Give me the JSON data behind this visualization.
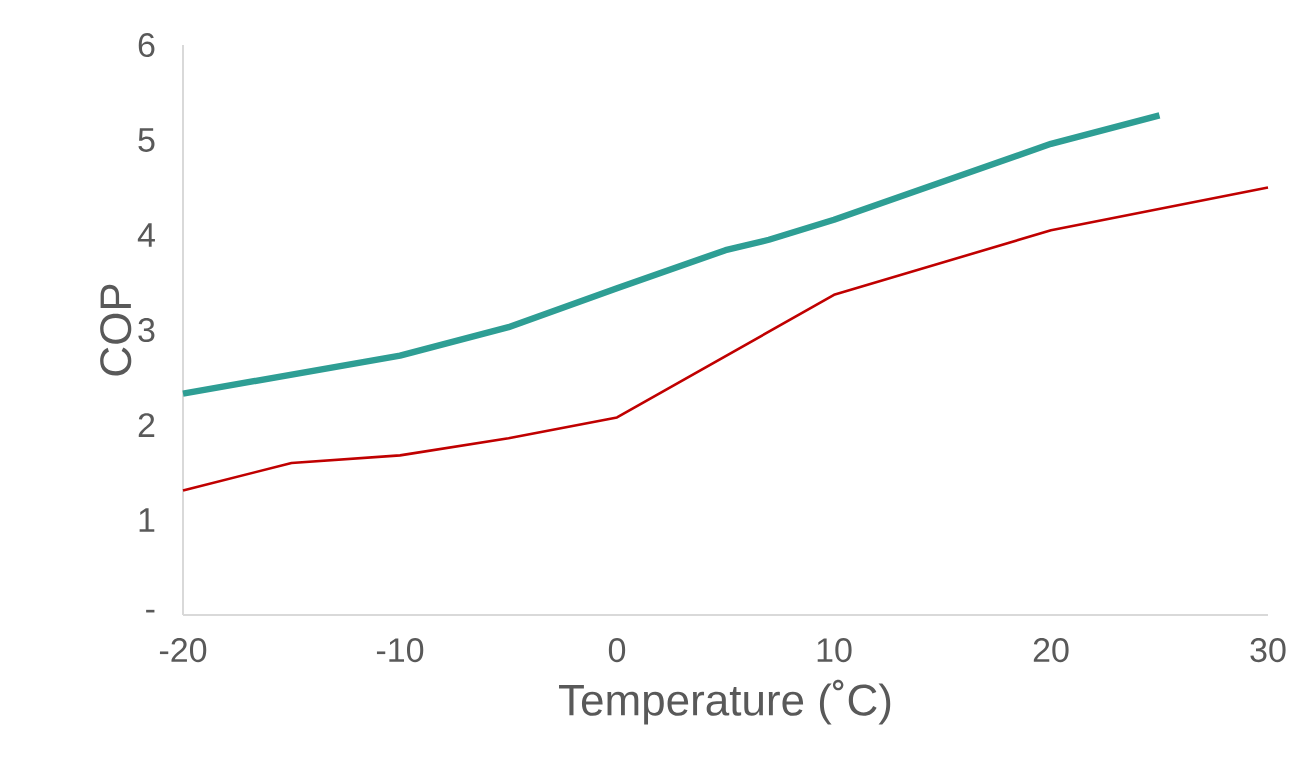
{
  "chart_data": {
    "type": "line",
    "xlabel": "Temperature (˚C)",
    "ylabel": "COP",
    "xlim": [
      -20,
      30
    ],
    "xticks": [
      -20,
      -10,
      0,
      10,
      20,
      30
    ],
    "ylim": [
      0,
      6
    ],
    "yticks": [
      {
        "value": 0,
        "label": "-"
      },
      1,
      2,
      3,
      4,
      5,
      6
    ],
    "grid": false,
    "marker": "none",
    "line_style": "solid",
    "series": [
      {
        "color": "#2e9e94",
        "x": [
          -20,
          -10,
          -5,
          0,
          5,
          7,
          10,
          20,
          25
        ],
        "values": [
          2.33,
          2.73,
          3.03,
          3.44,
          3.84,
          3.95,
          4.16,
          4.96,
          5.26
        ]
      },
      {
        "color": "#c00000",
        "x": [
          -20,
          -15,
          -10,
          -5,
          0,
          10,
          20,
          30
        ],
        "values": [
          1.31,
          1.6,
          1.68,
          1.86,
          2.08,
          3.37,
          4.05,
          4.5
        ]
      }
    ]
  }
}
